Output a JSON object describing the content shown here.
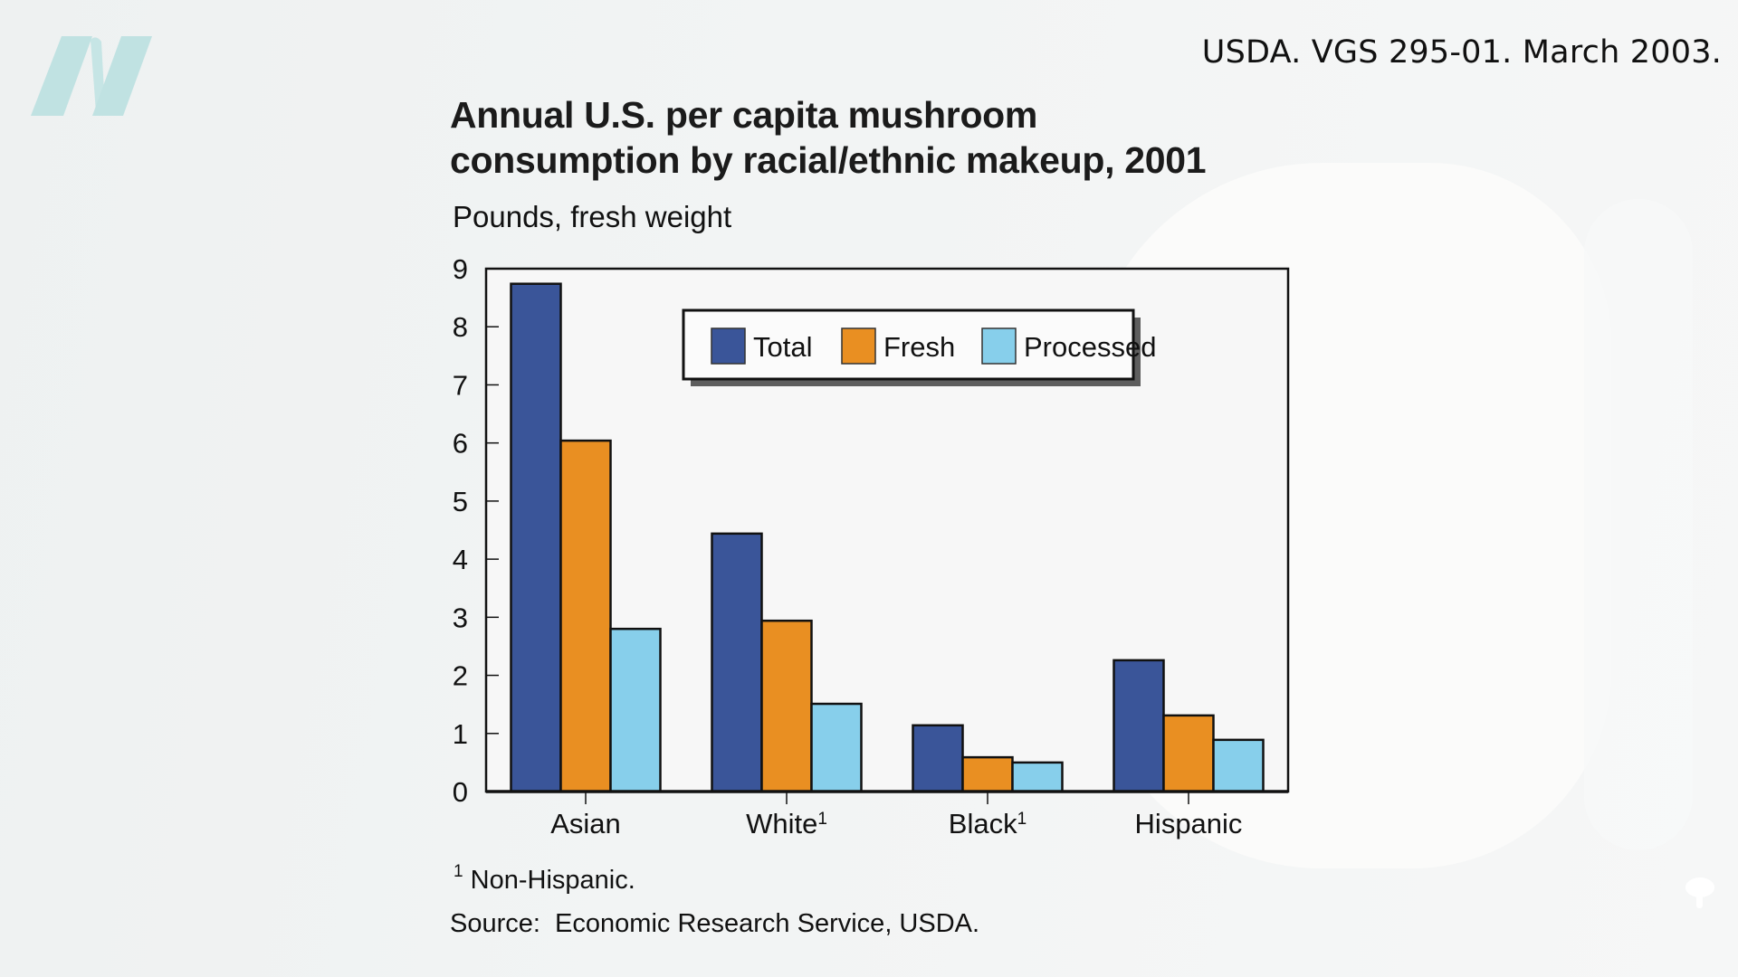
{
  "citation": "USDA. VGS 295-01. March 2003.",
  "title_lines": [
    "Annual U.S. per capita mushroom",
    "consumption by racial/ethnic makeup, 2001"
  ],
  "subtitle": "Pounds, fresh weight",
  "footnote": {
    "marker": "1",
    "text": "Non-Hispanic."
  },
  "source": "Source:  Economic Research Service, USDA.",
  "logo_icon": "n-logo-icon",
  "watermark_icon": "tree-icon",
  "colors": {
    "total": "#3a5599",
    "fresh": "#e98f22",
    "processed": "#87cfeb"
  },
  "chart_data": {
    "type": "bar",
    "title": "Annual U.S. per capita mushroom consumption by racial/ethnic makeup, 2001",
    "ylabel": "Pounds, fresh weight",
    "xlabel": "",
    "categories": [
      "Asian",
      "White",
      "Black",
      "Hispanic"
    ],
    "category_superscripts": [
      "",
      "1",
      "1",
      ""
    ],
    "series": [
      {
        "name": "Total",
        "values": [
          8.74,
          4.44,
          1.14,
          2.26
        ]
      },
      {
        "name": "Fresh",
        "values": [
          6.04,
          2.94,
          0.59,
          1.31
        ]
      },
      {
        "name": "Processed",
        "values": [
          2.8,
          1.51,
          0.5,
          0.89
        ]
      }
    ],
    "ylim": [
      0,
      9
    ],
    "yticks": [
      0,
      1,
      2,
      3,
      4,
      5,
      6,
      7,
      8,
      9
    ],
    "grid": false,
    "legend": {
      "placement": "top-center",
      "entries": [
        "Total",
        "Fresh",
        "Processed"
      ]
    }
  }
}
